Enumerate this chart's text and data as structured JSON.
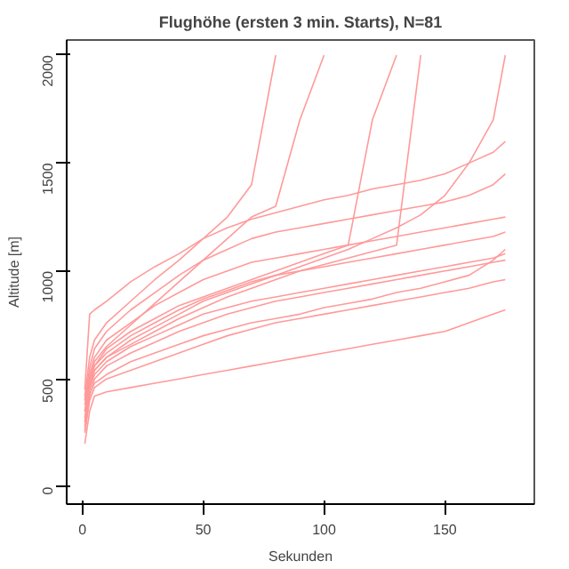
{
  "chart_data": {
    "type": "line",
    "title": "Flughöhe (ersten 3 min. Starts), N=81",
    "xlabel": "Sekunden",
    "ylabel": "Altitude [m]",
    "x": [
      1,
      3,
      5,
      10,
      20,
      30,
      40,
      50,
      60,
      70,
      80,
      90,
      100,
      110,
      120,
      130,
      140,
      150,
      160,
      170,
      175
    ],
    "xlim": [
      -6.5,
      187
    ],
    "ylim": [
      -80,
      2070
    ],
    "xticks": [
      0,
      50,
      100,
      150
    ],
    "yticks": [
      0,
      500,
      1000,
      1500,
      2000
    ],
    "line_style": "solid",
    "series": [
      {
        "color": "#ff9a9a",
        "values": [
          200,
          350,
          420,
          440,
          460,
          480,
          500,
          520,
          540,
          560,
          580,
          600,
          620,
          640,
          660,
          680,
          700,
          720,
          760,
          800,
          820
        ]
      },
      {
        "color": "#ff9a9a",
        "values": [
          250,
          400,
          460,
          500,
          540,
          580,
          620,
          660,
          700,
          730,
          760,
          780,
          800,
          820,
          840,
          860,
          880,
          900,
          920,
          950,
          960
        ]
      },
      {
        "color": "#ff9a9a",
        "values": [
          300,
          450,
          520,
          580,
          650,
          700,
          750,
          800,
          830,
          860,
          880,
          900,
          920,
          940,
          960,
          980,
          1000,
          1020,
          1040,
          1060,
          1080
        ]
      },
      {
        "color": "#ff9a9a",
        "values": [
          350,
          500,
          560,
          620,
          700,
          760,
          820,
          870,
          910,
          950,
          980,
          1000,
          1020,
          1040,
          1060,
          1080,
          1100,
          1120,
          1140,
          1160,
          1180
        ]
      },
      {
        "color": "#ff9a9a",
        "values": [
          400,
          520,
          600,
          680,
          760,
          840,
          900,
          960,
          1000,
          1040,
          1060,
          1080,
          1100,
          1120,
          1140,
          1160,
          1180,
          1200,
          1220,
          1240,
          1250
        ]
      },
      {
        "color": "#ff9a9a",
        "values": [
          450,
          800,
          820,
          860,
          950,
          1020,
          1080,
          1150,
          1200,
          1240,
          1270,
          1300,
          1330,
          1350,
          1380,
          1400,
          1420,
          1450,
          1500,
          1550,
          1600
        ]
      },
      {
        "color": "#ff9a9a",
        "values": [
          350,
          480,
          540,
          600,
          680,
          740,
          800,
          860,
          900,
          940,
          980,
          1020,
          1060,
          1100,
          1150,
          1200,
          1260,
          1350,
          1500,
          1700,
          2000
        ]
      },
      {
        "color": "#ff9a9a",
        "values": [
          380,
          500,
          580,
          650,
          750,
          850,
          950,
          1050,
          1150,
          1250,
          1300,
          1700,
          2000,
          null,
          null,
          null,
          null,
          null,
          null,
          null,
          null
        ]
      },
      {
        "color": "#ff9a9a",
        "values": [
          300,
          460,
          540,
          600,
          660,
          720,
          780,
          830,
          880,
          920,
          960,
          1000,
          1030,
          1060,
          1090,
          1120,
          2000,
          null,
          null,
          null,
          null
        ]
      },
      {
        "color": "#ff9a9a",
        "values": [
          320,
          480,
          560,
          640,
          720,
          780,
          840,
          880,
          920,
          960,
          1000,
          1040,
          1080,
          1120,
          1700,
          2000,
          null,
          null,
          null,
          null,
          null
        ]
      },
      {
        "color": "#ff9a9a",
        "values": [
          280,
          420,
          500,
          560,
          620,
          670,
          720,
          760,
          800,
          830,
          860,
          880,
          900,
          920,
          940,
          960,
          980,
          1000,
          1020,
          1040,
          1050
        ]
      },
      {
        "color": "#ff9a9a",
        "values": [
          260,
          430,
          480,
          520,
          580,
          620,
          660,
          700,
          730,
          760,
          780,
          800,
          830,
          850,
          870,
          900,
          920,
          950,
          980,
          1050,
          1100
        ]
      },
      {
        "color": "#ff9a9a",
        "values": [
          400,
          550,
          640,
          720,
          820,
          900,
          980,
          1050,
          1100,
          1150,
          1180,
          1200,
          1220,
          1240,
          1260,
          1280,
          1300,
          1320,
          1350,
          1400,
          1450
        ]
      },
      {
        "color": "#ff9a9a",
        "values": [
          420,
          600,
          680,
          760,
          860,
          960,
          1050,
          1150,
          1250,
          1400,
          2000,
          null,
          null,
          null,
          null,
          null,
          null,
          null,
          null,
          null,
          null
        ]
      }
    ]
  }
}
